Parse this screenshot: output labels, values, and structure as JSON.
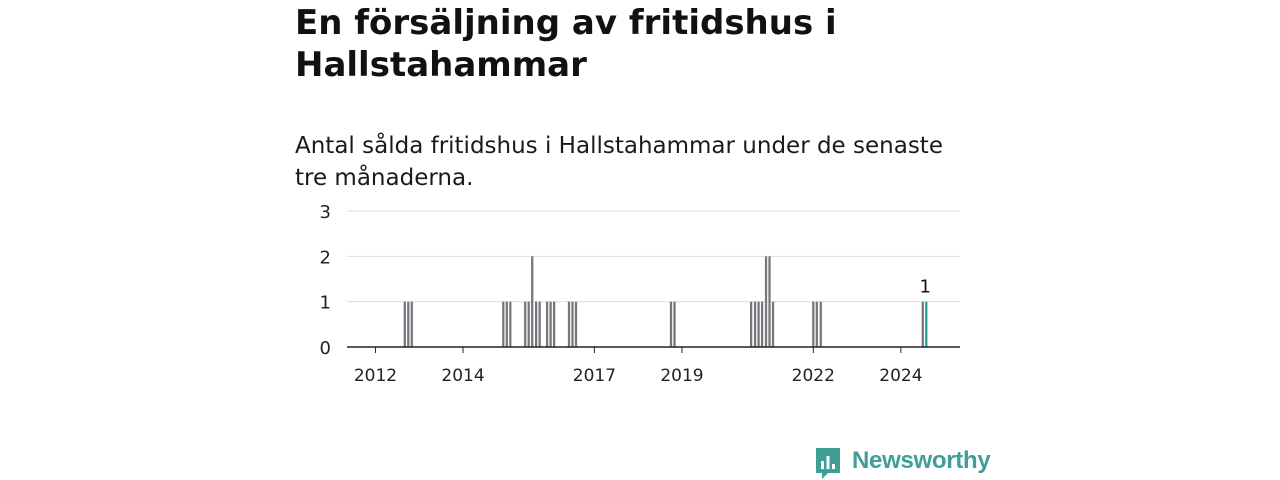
{
  "title": "En försäljning av fritidshus i Hallstahammar",
  "subtitle": "Antal sålda fritidshus i Hallstahammar under de senaste tre månaderna.",
  "brand": "Newsworthy",
  "colors": {
    "bar": "#77767c",
    "highlight": "#1fa394",
    "grid": "#dddddd",
    "axis": "#222222",
    "brand": "#3f9e96"
  },
  "chart_data": {
    "type": "bar",
    "title": "En försäljning av fritidshus i Hallstahammar",
    "subtitle": "Antal sålda fritidshus i Hallstahammar under de senaste tre månaderna.",
    "xlabel": "",
    "ylabel": "",
    "ylim": [
      0,
      3
    ],
    "yticks": [
      "0",
      "1",
      "2",
      "3"
    ],
    "grid": true,
    "legend": "none",
    "xticks": [
      {
        "label": "2012",
        "value": 2012.0
      },
      {
        "label": "2014",
        "value": 2014.0
      },
      {
        "label": "2017",
        "value": 2017.0
      },
      {
        "label": "2019",
        "value": 2019.0
      },
      {
        "label": "2022",
        "value": 2022.0
      },
      {
        "label": "2024",
        "value": 2024.0
      }
    ],
    "xrange": [
      2011.35,
      2025.35
    ],
    "bar_period_years": 0.0833,
    "bars": [
      {
        "x": 2012.67,
        "value": 1
      },
      {
        "x": 2012.75,
        "value": 1
      },
      {
        "x": 2012.83,
        "value": 1
      },
      {
        "x": 2014.92,
        "value": 1
      },
      {
        "x": 2015.0,
        "value": 1
      },
      {
        "x": 2015.08,
        "value": 1
      },
      {
        "x": 2015.42,
        "value": 1
      },
      {
        "x": 2015.5,
        "value": 1
      },
      {
        "x": 2015.58,
        "value": 2
      },
      {
        "x": 2015.67,
        "value": 1
      },
      {
        "x": 2015.75,
        "value": 1
      },
      {
        "x": 2015.92,
        "value": 1
      },
      {
        "x": 2016.0,
        "value": 1
      },
      {
        "x": 2016.08,
        "value": 1
      },
      {
        "x": 2016.42,
        "value": 1
      },
      {
        "x": 2016.5,
        "value": 1
      },
      {
        "x": 2016.58,
        "value": 1
      },
      {
        "x": 2018.75,
        "value": 1
      },
      {
        "x": 2018.83,
        "value": 1
      },
      {
        "x": 2020.58,
        "value": 1
      },
      {
        "x": 2020.67,
        "value": 1
      },
      {
        "x": 2020.75,
        "value": 1
      },
      {
        "x": 2020.83,
        "value": 1
      },
      {
        "x": 2020.92,
        "value": 2
      },
      {
        "x": 2021.0,
        "value": 2
      },
      {
        "x": 2021.08,
        "value": 1
      },
      {
        "x": 2022.0,
        "value": 1
      },
      {
        "x": 2022.08,
        "value": 1
      },
      {
        "x": 2022.17,
        "value": 1
      },
      {
        "x": 2024.5,
        "value": 1
      },
      {
        "x": 2024.58,
        "value": 1,
        "highlight": true,
        "label": "1"
      }
    ]
  }
}
